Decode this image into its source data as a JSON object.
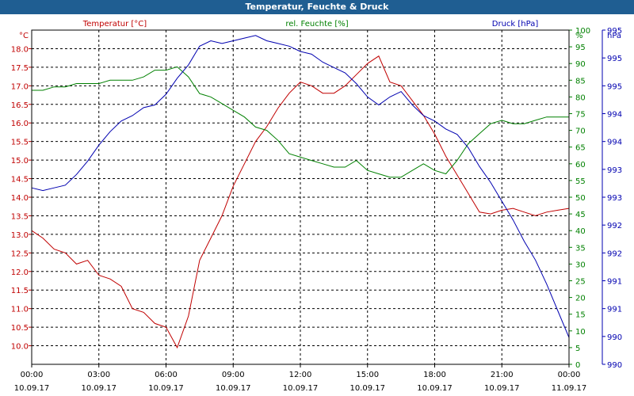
{
  "window": {
    "title": "Temperatur, Feuchte & Druck"
  },
  "colors": {
    "temperature": "#c00000",
    "humidity": "#008000",
    "pressure": "#0000b0",
    "axis_text": "#000000",
    "titlebar": "#1f5e92"
  },
  "chart_data": {
    "type": "line",
    "title": "Temperatur, Feuchte & Druck",
    "grid": true,
    "legend": "top",
    "x": [
      "00:00",
      "00:30",
      "01:00",
      "01:30",
      "02:00",
      "02:30",
      "03:00",
      "03:30",
      "04:00",
      "04:30",
      "05:00",
      "05:30",
      "06:00",
      "06:30",
      "07:00",
      "07:30",
      "08:00",
      "08:30",
      "09:00",
      "09:30",
      "10:00",
      "10:30",
      "11:00",
      "11:30",
      "12:00",
      "12:30",
      "13:00",
      "13:30",
      "14:00",
      "14:30",
      "15:00",
      "15:30",
      "16:00",
      "16:30",
      "17:00",
      "17:30",
      "18:00",
      "18:30",
      "19:00",
      "19:30",
      "20:00",
      "20:30",
      "21:00",
      "21:30",
      "22:00",
      "22:30",
      "23:00",
      "23:30",
      "00:00"
    ],
    "xlabel": "",
    "x_ticks": [
      {
        "time": "00:00",
        "date": "10.09.17"
      },
      {
        "time": "03:00",
        "date": "10.09.17"
      },
      {
        "time": "06:00",
        "date": "10.09.17"
      },
      {
        "time": "09:00",
        "date": "10.09.17"
      },
      {
        "time": "12:00",
        "date": "10.09.17"
      },
      {
        "time": "15:00",
        "date": "10.09.17"
      },
      {
        "time": "18:00",
        "date": "10.09.17"
      },
      {
        "time": "21:00",
        "date": "10.09.17"
      },
      {
        "time": "00:00",
        "date": "11.09.17"
      }
    ],
    "axes": {
      "temperature": {
        "label": "Temperatur [°C]",
        "unit": "°C",
        "ylim": [
          9.5,
          18.5
        ],
        "ticks": [
          "10.0",
          "10.5",
          "11.0",
          "11.5",
          "12.0",
          "12.5",
          "13.0",
          "13.5",
          "14.0",
          "14.5",
          "15.0",
          "15.5",
          "16.0",
          "16.5",
          "17.0",
          "17.5",
          "18.0"
        ]
      },
      "humidity": {
        "label": "rel. Feuchte [%]",
        "unit": "%",
        "ylim": [
          0,
          100
        ],
        "ticks": [
          "0",
          "5",
          "10",
          "15",
          "20",
          "25",
          "30",
          "35",
          "40",
          "45",
          "50",
          "55",
          "60",
          "65",
          "70",
          "75",
          "80",
          "85",
          "90",
          "95",
          "100"
        ]
      },
      "pressure": {
        "label": "Druck [hPa]",
        "unit": "hPa",
        "ylim": [
          989.5,
          995.75
        ],
        "ticks": [
          "990",
          "990",
          "991",
          "991",
          "992",
          "992",
          "993",
          "993",
          "994",
          "994",
          "995",
          "995",
          "995"
        ]
      }
    },
    "series": [
      {
        "name": "Temperatur [°C]",
        "axis": "temperature",
        "values": [
          13.1,
          12.9,
          12.6,
          12.5,
          12.2,
          12.3,
          11.9,
          11.8,
          11.6,
          11.0,
          10.9,
          10.6,
          10.5,
          9.95,
          10.8,
          12.3,
          12.9,
          13.5,
          14.3,
          14.9,
          15.5,
          15.9,
          16.4,
          16.8,
          17.1,
          17.0,
          16.8,
          16.8,
          17.0,
          17.3,
          17.6,
          17.8,
          17.1,
          17.0,
          16.6,
          16.2,
          15.7,
          15.1,
          14.6,
          14.1,
          13.6,
          13.55,
          13.65,
          13.7,
          13.6,
          13.5,
          13.6,
          13.65,
          13.7
        ]
      },
      {
        "name": "rel. Feuchte [%]",
        "axis": "humidity",
        "values": [
          82,
          82,
          83,
          83,
          84,
          84,
          84,
          85,
          85,
          85,
          86,
          88,
          88,
          89,
          86,
          81,
          80,
          78,
          76,
          74,
          71,
          70,
          67,
          63,
          62,
          61,
          60,
          59,
          59,
          61,
          58,
          57,
          56,
          56,
          58,
          60,
          58,
          57,
          61,
          66,
          69,
          72,
          73,
          72,
          72,
          73,
          74,
          74,
          74
        ]
      },
      {
        "name": "Druck [hPa]",
        "axis": "pressure",
        "values": [
          992.8,
          992.75,
          992.8,
          992.85,
          993.05,
          993.3,
          993.6,
          993.85,
          994.05,
          994.15,
          994.3,
          994.35,
          994.55,
          994.85,
          995.1,
          995.45,
          995.55,
          995.5,
          995.55,
          995.6,
          995.65,
          995.55,
          995.5,
          995.45,
          995.35,
          995.3,
          995.15,
          995.05,
          994.95,
          994.75,
          994.5,
          994.35,
          994.5,
          994.6,
          994.35,
          994.15,
          994.05,
          993.9,
          993.8,
          993.55,
          993.2,
          992.9,
          992.55,
          992.2,
          991.8,
          991.45,
          991.0,
          990.5,
          990.0
        ]
      }
    ]
  }
}
